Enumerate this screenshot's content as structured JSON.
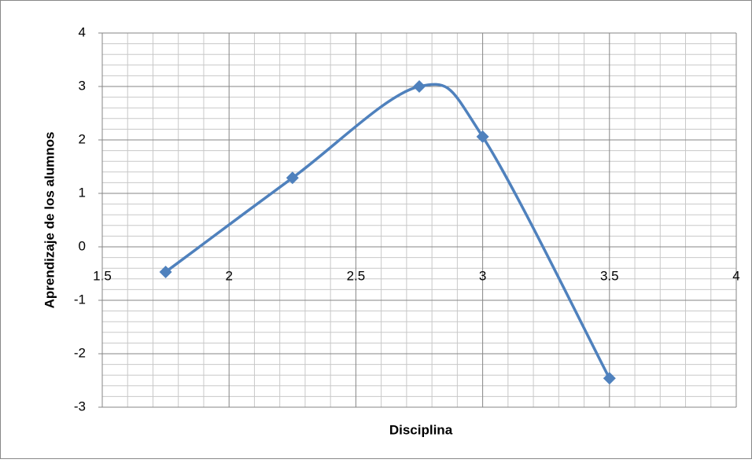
{
  "chart_data": {
    "type": "scatter_smooth",
    "x_label": "Disciplina",
    "y_label": "Aprendizaje de los alumnos",
    "series": [
      {
        "name": "Aprendizaje",
        "color": "#4f81bd",
        "x": [
          1.75,
          2.25,
          2.75,
          3.0,
          3.5
        ],
        "values": [
          -0.47,
          1.29,
          3.0,
          2.06,
          -2.46
        ]
      }
    ],
    "xlim": [
      1.5,
      4
    ],
    "xticks": [
      1.5,
      2,
      2.5,
      3,
      3.5,
      4
    ],
    "ylim": [
      -3,
      4
    ],
    "yticks": [
      -3,
      -2,
      -1,
      0,
      1,
      2,
      3,
      4
    ],
    "grid": true,
    "minor_grid": true
  }
}
